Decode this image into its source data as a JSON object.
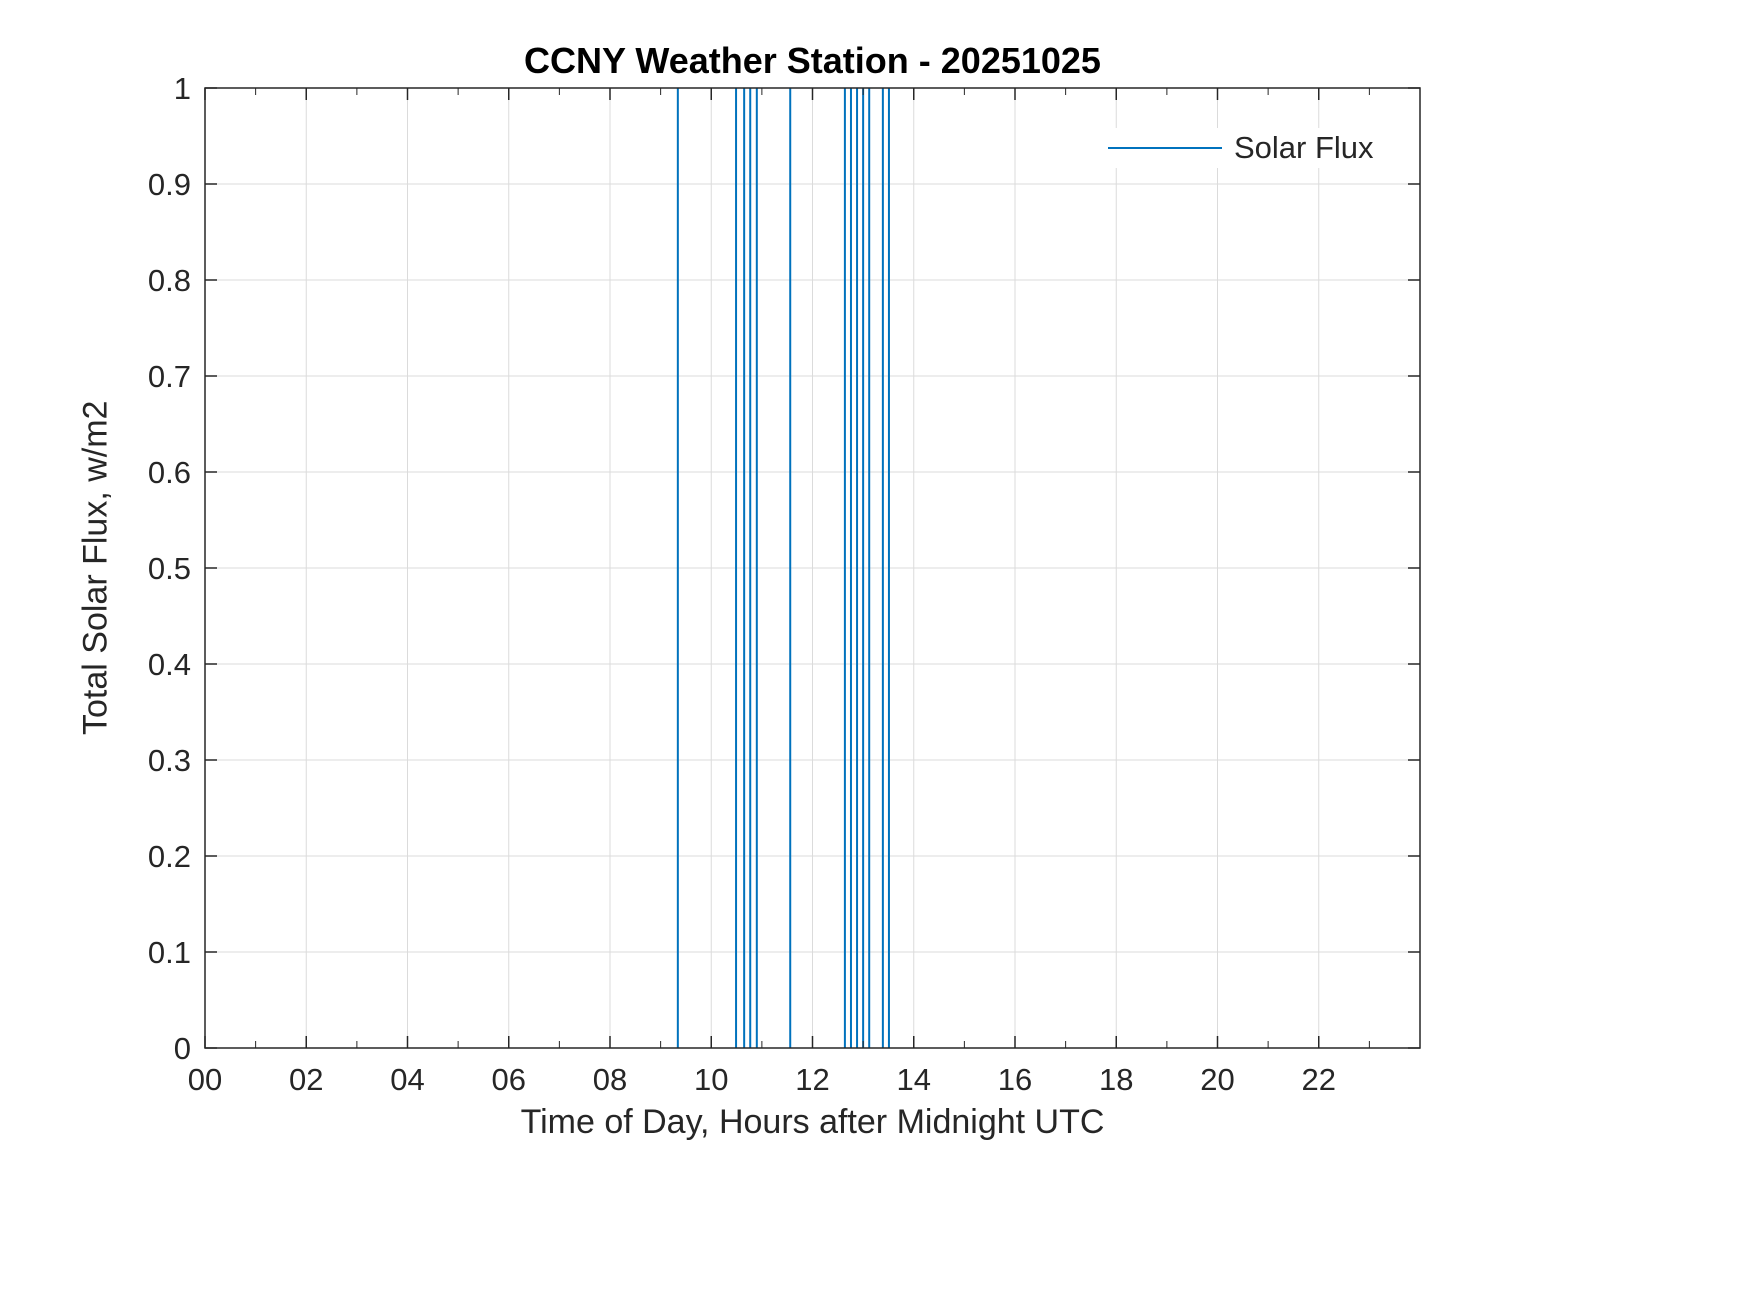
{
  "legend": {
    "position": "top-right"
  },
  "colors": {
    "line": "#0072BD",
    "grid": "#DBDBDB",
    "axis": "#262626",
    "background": "#ffffff"
  },
  "chart_data": {
    "type": "line",
    "title": "CCNY Weather Station - 20251025",
    "xlabel": "Time of Day, Hours after Midnight UTC",
    "ylabel": "Total Solar Flux, w/m2",
    "xlim": [
      0,
      24
    ],
    "ylim": [
      0,
      1
    ],
    "x_tick_values": [
      0,
      2,
      4,
      6,
      8,
      10,
      12,
      14,
      16,
      18,
      20,
      22
    ],
    "x_tick_labels": [
      "00",
      "02",
      "04",
      "06",
      "08",
      "10",
      "12",
      "14",
      "16",
      "18",
      "20",
      "22"
    ],
    "y_tick_values": [
      0,
      0.1,
      0.2,
      0.3,
      0.4,
      0.5,
      0.6,
      0.7,
      0.8,
      0.9,
      1
    ],
    "y_tick_labels": [
      "0",
      "0.1",
      "0.2",
      "0.3",
      "0.4",
      "0.5",
      "0.6",
      "0.7",
      "0.8",
      "0.9",
      "1"
    ],
    "grid": true,
    "x_minor_tick_step": 1,
    "legend_position": "top-right",
    "series": [
      {
        "name": "Solar Flux",
        "color": "#0072BD",
        "render": "vertical-spikes",
        "spike_ymin": 0,
        "spike_ymax": 1,
        "spike_hours": [
          9.34,
          10.49,
          10.65,
          10.77,
          10.9,
          11.56,
          12.64,
          12.76,
          12.88,
          13.0,
          13.12,
          13.39,
          13.51
        ]
      }
    ]
  }
}
